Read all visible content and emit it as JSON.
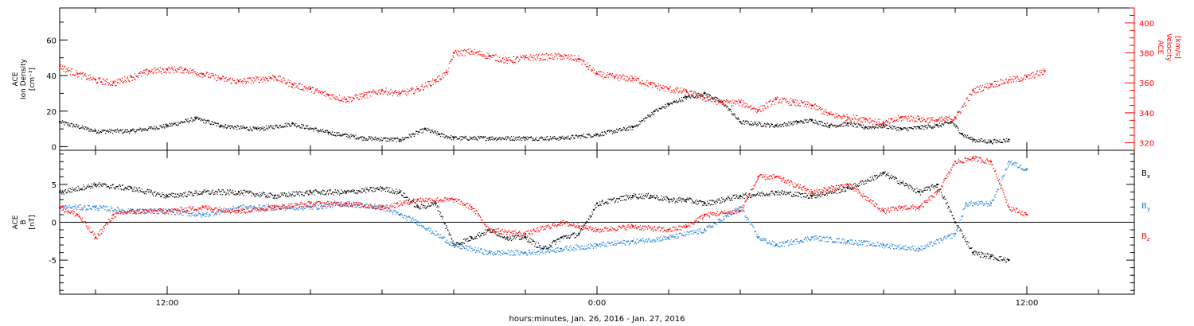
{
  "chart_data": {
    "type": "scatter",
    "x_axis": {
      "label": "hours:minutes, Jan. 26, 2016 - Jan. 27, 2016",
      "range_hours": [
        9,
        39
      ],
      "ticks": [
        {
          "hour": 12,
          "label": "12:00"
        },
        {
          "hour": 24,
          "label": "0:00"
        },
        {
          "hour": 36,
          "label": "12:00"
        }
      ],
      "minor_tick_step_hours": 2
    },
    "panels": [
      {
        "ylabel_left": [
          "ACE",
          "Ion Density",
          "[cm⁻³]"
        ],
        "ylim_left": [
          -2,
          78
        ],
        "left_ticks": [
          0,
          20,
          40,
          60
        ],
        "ylabel_right": [
          "ACE",
          "Velocity",
          "[km/s]"
        ],
        "ylim_right": [
          315,
          410
        ],
        "right_ticks": [
          320,
          340,
          360,
          380,
          400
        ],
        "series": [
          {
            "name": "Ion Density",
            "axis": "left",
            "color": "#000000",
            "points": [
              [
                9.0,
                14
              ],
              [
                10.0,
                9
              ],
              [
                11.0,
                9
              ],
              [
                12.0,
                12
              ],
              [
                12.8,
                16
              ],
              [
                13.5,
                12
              ],
              [
                14.5,
                10
              ],
              [
                15.5,
                13
              ],
              [
                16.5,
                8
              ],
              [
                17.5,
                5
              ],
              [
                18.5,
                4
              ],
              [
                19.2,
                10
              ],
              [
                19.6,
                7
              ],
              [
                20.0,
                5
              ],
              [
                21.0,
                5
              ],
              [
                22.0,
                5
              ],
              [
                23.0,
                5
              ],
              [
                24.0,
                7
              ],
              [
                25.0,
                11
              ],
              [
                25.6,
                20
              ],
              [
                26.0,
                24
              ],
              [
                26.5,
                28
              ],
              [
                27.0,
                30
              ],
              [
                27.5,
                25
              ],
              [
                28.0,
                14
              ],
              [
                29.0,
                12
              ],
              [
                29.6,
                14
              ],
              [
                30.0,
                15
              ],
              [
                30.5,
                12
              ],
              [
                31.0,
                13
              ],
              [
                31.5,
                11
              ],
              [
                32.0,
                12
              ],
              [
                32.5,
                10
              ],
              [
                33.0,
                11
              ],
              [
                33.5,
                12
              ],
              [
                33.9,
                14
              ],
              [
                34.2,
                7
              ],
              [
                34.5,
                4
              ],
              [
                35.0,
                3
              ],
              [
                35.5,
                4
              ]
            ]
          },
          {
            "name": "Velocity",
            "axis": "right",
            "color": "#ff0000",
            "points": [
              [
                9.0,
                371
              ],
              [
                9.5,
                366
              ],
              [
                10.0,
                362
              ],
              [
                10.5,
                360
              ],
              [
                11.0,
                364
              ],
              [
                11.5,
                368
              ],
              [
                12.0,
                369
              ],
              [
                12.5,
                369
              ],
              [
                13.0,
                366
              ],
              [
                13.5,
                363
              ],
              [
                14.0,
                361
              ],
              [
                15.0,
                364
              ],
              [
                15.5,
                359
              ],
              [
                16.0,
                356
              ],
              [
                16.5,
                352
              ],
              [
                17.0,
                349
              ],
              [
                17.5,
                352
              ],
              [
                18.0,
                355
              ],
              [
                18.5,
                353
              ],
              [
                19.0,
                356
              ],
              [
                19.5,
                362
              ],
              [
                19.8,
                367
              ],
              [
                20.0,
                380
              ],
              [
                20.5,
                381
              ],
              [
                21.0,
                378
              ],
              [
                21.5,
                375
              ],
              [
                22.0,
                377
              ],
              [
                23.0,
                378
              ],
              [
                23.5,
                376
              ],
              [
                24.0,
                366
              ],
              [
                24.5,
                364
              ],
              [
                25.0,
                363
              ],
              [
                25.5,
                359
              ],
              [
                26.0,
                356
              ],
              [
                26.5,
                354
              ],
              [
                27.0,
                350
              ],
              [
                27.5,
                347
              ],
              [
                28.0,
                347
              ],
              [
                28.5,
                342
              ],
              [
                29.0,
                349
              ],
              [
                29.5,
                347
              ],
              [
                30.0,
                345
              ],
              [
                30.5,
                339
              ],
              [
                31.0,
                337
              ],
              [
                31.5,
                336
              ],
              [
                32.0,
                333
              ],
              [
                32.5,
                337
              ],
              [
                33.0,
                336
              ],
              [
                33.5,
                335
              ],
              [
                34.0,
                337
              ],
              [
                34.5,
                355
              ],
              [
                35.0,
                359
              ],
              [
                35.5,
                362
              ],
              [
                36.0,
                364
              ],
              [
                36.5,
                368
              ]
            ]
          }
        ]
      },
      {
        "ylabel_left": [
          "ACE",
          "B",
          "[nT]"
        ],
        "ylim_left": [
          -9.5,
          9.5
        ],
        "left_ticks": [
          -5,
          0,
          5
        ],
        "zero_line": true,
        "legend": [
          {
            "name": "Bx",
            "text": "B",
            "sub": "x",
            "color": "#000000"
          },
          {
            "name": "By",
            "text": "B",
            "sub": "y",
            "color": "#1e7fd6"
          },
          {
            "name": "Bz",
            "text": "B",
            "sub": "z",
            "color": "#ff0000"
          }
        ],
        "series": [
          {
            "name": "Bx",
            "color": "#000000",
            "points": [
              [
                9.0,
                4
              ],
              [
                10.0,
                5
              ],
              [
                11.0,
                4.5
              ],
              [
                12.0,
                3.5
              ],
              [
                13.0,
                4
              ],
              [
                14.0,
                4
              ],
              [
                15.0,
                3.5
              ],
              [
                16.0,
                4
              ],
              [
                17.0,
                4
              ],
              [
                18.0,
                4.5
              ],
              [
                18.5,
                4
              ],
              [
                19.0,
                2
              ],
              [
                19.5,
                2.5
              ],
              [
                20.0,
                -3
              ],
              [
                20.5,
                -2
              ],
              [
                21.0,
                -1
              ],
              [
                21.5,
                -2
              ],
              [
                22.0,
                -2
              ],
              [
                22.5,
                -3.5
              ],
              [
                23.0,
                -2
              ],
              [
                23.5,
                -1.5
              ],
              [
                24.0,
                2.5
              ],
              [
                25.0,
                3.5
              ],
              [
                25.5,
                3.5
              ],
              [
                26.0,
                3
              ],
              [
                26.5,
                3
              ],
              [
                27.0,
                2.5
              ],
              [
                28.0,
                3.5
              ],
              [
                29.0,
                4
              ],
              [
                30.0,
                3.5
              ],
              [
                31.0,
                4.5
              ],
              [
                32.0,
                6.5
              ],
              [
                33.0,
                4
              ],
              [
                33.5,
                5
              ],
              [
                34.0,
                0
              ],
              [
                34.5,
                -4
              ],
              [
                35.0,
                -4.5
              ],
              [
                35.5,
                -5
              ]
            ]
          },
          {
            "name": "By",
            "color": "#1e7fd6",
            "points": [
              [
                9.0,
                2
              ],
              [
                10.0,
                2
              ],
              [
                11.0,
                1.5
              ],
              [
                12.0,
                1.5
              ],
              [
                13.0,
                1
              ],
              [
                14.0,
                2
              ],
              [
                15.0,
                2
              ],
              [
                16.0,
                2
              ],
              [
                17.0,
                2.5
              ],
              [
                18.0,
                2
              ],
              [
                18.5,
                1
              ],
              [
                19.0,
                0
              ],
              [
                20.0,
                -3
              ],
              [
                21.0,
                -4
              ],
              [
                22.0,
                -4
              ],
              [
                23.0,
                -3.5
              ],
              [
                24.0,
                -3
              ],
              [
                25.0,
                -2.5
              ],
              [
                26.0,
                -2
              ],
              [
                27.0,
                -1
              ],
              [
                28.0,
                2
              ],
              [
                28.5,
                -2
              ],
              [
                29.0,
                -3
              ],
              [
                30.0,
                -2
              ],
              [
                31.0,
                -2.5
              ],
              [
                32.0,
                -3
              ],
              [
                33.0,
                -3.5
              ],
              [
                34.0,
                -1.5
              ],
              [
                34.3,
                2.5
              ],
              [
                35.0,
                2.5
              ],
              [
                35.5,
                8
              ],
              [
                36.0,
                7
              ]
            ]
          },
          {
            "name": "Bz",
            "color": "#ff0000",
            "points": [
              [
                9.0,
                2
              ],
              [
                9.5,
                1
              ],
              [
                10.0,
                -2
              ],
              [
                10.5,
                1
              ],
              [
                11.0,
                1.5
              ],
              [
                12.0,
                1.5
              ],
              [
                13.0,
                2
              ],
              [
                14.0,
                1.5
              ],
              [
                15.0,
                2
              ],
              [
                16.0,
                2.5
              ],
              [
                17.0,
                2.5
              ],
              [
                18.0,
                2
              ],
              [
                19.0,
                3
              ],
              [
                20.0,
                3
              ],
              [
                20.5,
                2
              ],
              [
                21.0,
                -1
              ],
              [
                22.0,
                -1.5
              ],
              [
                23.0,
                0
              ],
              [
                23.5,
                -0.5
              ],
              [
                24.0,
                -1
              ],
              [
                25.0,
                -0.5
              ],
              [
                26.0,
                -1
              ],
              [
                26.5,
                -0.5
              ],
              [
                27.0,
                1
              ],
              [
                28.0,
                1.5
              ],
              [
                28.5,
                6
              ],
              [
                29.0,
                6
              ],
              [
                30.0,
                4
              ],
              [
                31.0,
                5
              ],
              [
                32.0,
                1.5
              ],
              [
                32.5,
                2
              ],
              [
                33.0,
                2
              ],
              [
                33.5,
                4
              ],
              [
                34.0,
                8
              ],
              [
                34.5,
                8.5
              ],
              [
                35.0,
                8
              ],
              [
                35.5,
                2
              ],
              [
                36.0,
                1
              ]
            ]
          }
        ]
      }
    ]
  }
}
